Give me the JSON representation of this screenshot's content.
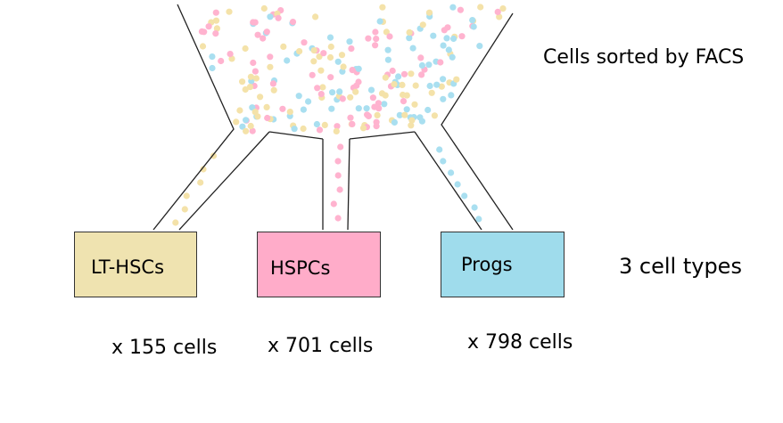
{
  "header": {
    "sorted_label": "Cells sorted by FACS"
  },
  "types_label": "3 cell types",
  "boxes": [
    {
      "label": "LT-HSCs",
      "count": "x 155 cells",
      "color": "#efe3b0"
    },
    {
      "label": "HSPCs",
      "count": "x 701 cells",
      "color": "#ffacc9"
    },
    {
      "label": "Progs",
      "count": "x 798 cells",
      "color": "#9fdcec"
    }
  ],
  "dot_colors": [
    "#f4e2a9",
    "#ffb3cf",
    "#a9dff0"
  ]
}
